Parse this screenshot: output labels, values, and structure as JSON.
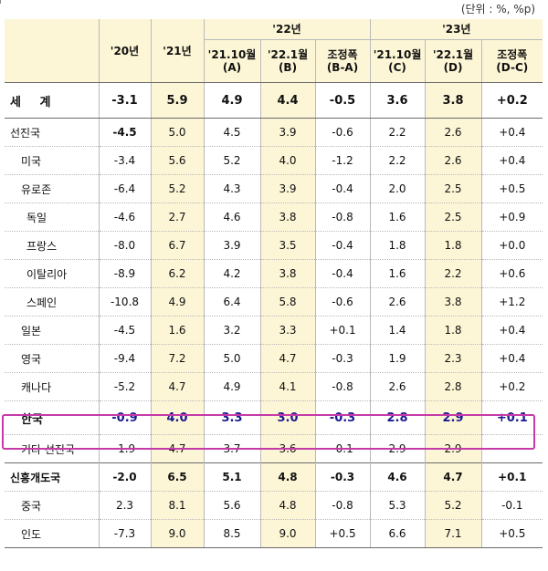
{
  "unit_note": "(단위 : %, %p)",
  "header": {
    "y20": "'20년",
    "y21": "'21년",
    "y22": "'22년",
    "y23": "'23년",
    "sub": [
      {
        "l1": "'21.10월",
        "l2": "(A)"
      },
      {
        "l1": "'22.1월",
        "l2": "(B)"
      },
      {
        "l1": "조정폭",
        "l2": "(B-A)"
      },
      {
        "l1": "'21.10월",
        "l2": "(C)"
      },
      {
        "l1": "'22.1월",
        "l2": "(D)"
      },
      {
        "l1": "조정폭",
        "l2": "(D-C)"
      }
    ]
  },
  "rows": [
    {
      "name": "세 계",
      "v": [
        "-3.1",
        "5.9",
        "4.9",
        "4.4",
        "-0.5",
        "3.6",
        "3.8",
        "+0.2"
      ]
    },
    {
      "name": "선진국",
      "v": [
        "-4.5",
        "5.0",
        "4.5",
        "3.9",
        "-0.6",
        "2.2",
        "2.6",
        "+0.4"
      ]
    },
    {
      "name": "미국",
      "v": [
        "-3.4",
        "5.6",
        "5.2",
        "4.0",
        "-1.2",
        "2.2",
        "2.6",
        "+0.4"
      ]
    },
    {
      "name": "유로존",
      "v": [
        "-6.4",
        "5.2",
        "4.3",
        "3.9",
        "-0.4",
        "2.0",
        "2.5",
        "+0.5"
      ]
    },
    {
      "name": "독일",
      "v": [
        "-4.6",
        "2.7",
        "4.6",
        "3.8",
        "-0.8",
        "1.6",
        "2.5",
        "+0.9"
      ]
    },
    {
      "name": "프랑스",
      "v": [
        "-8.0",
        "6.7",
        "3.9",
        "3.5",
        "-0.4",
        "1.8",
        "1.8",
        "+0.0"
      ]
    },
    {
      "name": "이탈리아",
      "v": [
        "-8.9",
        "6.2",
        "4.2",
        "3.8",
        "-0.4",
        "1.6",
        "2.2",
        "+0.6"
      ]
    },
    {
      "name": "스페인",
      "v": [
        "-10.8",
        "4.9",
        "6.4",
        "5.8",
        "-0.6",
        "2.6",
        "3.8",
        "+1.2"
      ]
    },
    {
      "name": "일본",
      "v": [
        "-4.5",
        "1.6",
        "3.2",
        "3.3",
        "+0.1",
        "1.4",
        "1.8",
        "+0.4"
      ]
    },
    {
      "name": "영국",
      "v": [
        "-9.4",
        "7.2",
        "5.0",
        "4.7",
        "-0.3",
        "1.9",
        "2.3",
        "+0.4"
      ]
    },
    {
      "name": "캐나다",
      "v": [
        "-5.2",
        "4.7",
        "4.9",
        "4.1",
        "-0.8",
        "2.6",
        "2.8",
        "+0.2"
      ]
    },
    {
      "name": "한국",
      "v": [
        "-0.9",
        "4.0",
        "3.3",
        "3.0",
        "-0.3",
        "2.8",
        "2.9",
        "+0.1"
      ]
    },
    {
      "name": "기타 선진국",
      "v": [
        "-1.9",
        "4.7",
        "3.7",
        "3.6",
        "-0.1",
        "2.9",
        "2.9",
        "-"
      ]
    },
    {
      "name": "신흥개도국",
      "v": [
        "-2.0",
        "6.5",
        "5.1",
        "4.8",
        "-0.3",
        "4.6",
        "4.7",
        "+0.1"
      ]
    },
    {
      "name": "중국",
      "v": [
        "2.3",
        "8.1",
        "5.6",
        "4.8",
        "-0.8",
        "5.3",
        "5.2",
        "-0.1"
      ]
    },
    {
      "name": "인도",
      "v": [
        "-7.3",
        "9.0",
        "8.5",
        "9.0",
        "+0.5",
        "6.6",
        "7.1",
        "+0.5"
      ]
    }
  ]
}
